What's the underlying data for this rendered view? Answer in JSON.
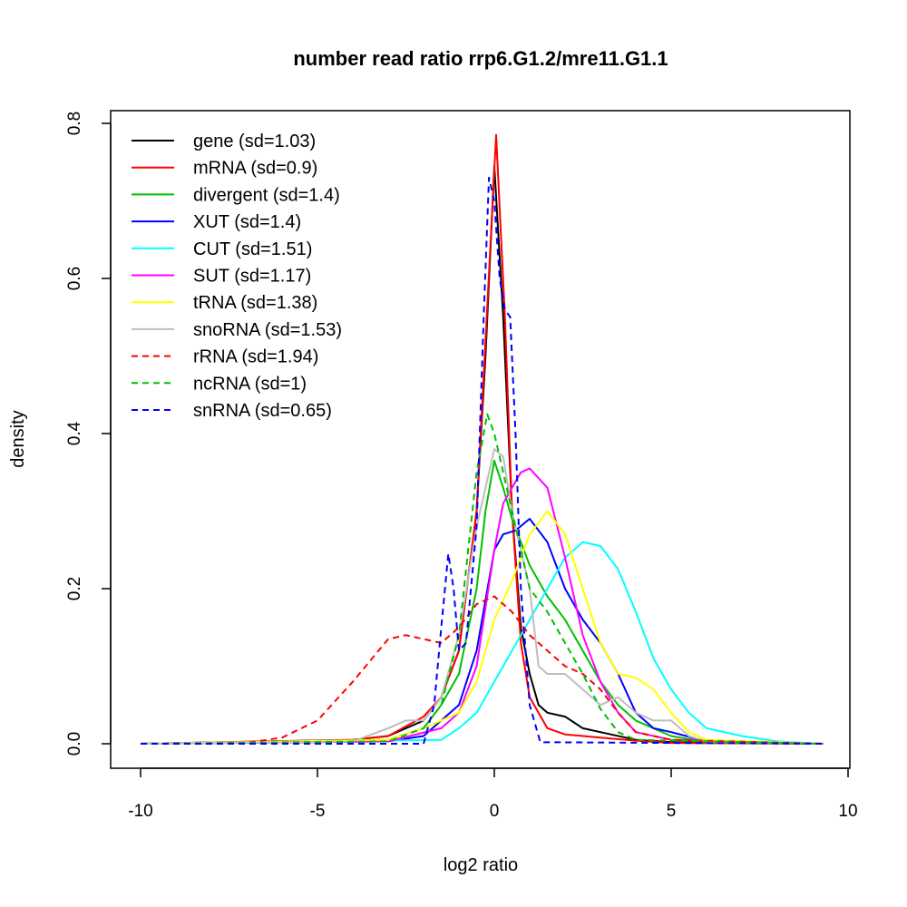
{
  "chart_data": {
    "type": "line",
    "title": "number read ratio rrp6.G1.2/mre11.G1.1",
    "xlabel": "log2 ratio",
    "ylabel": "density",
    "xlim": [
      -10,
      10
    ],
    "ylim": [
      0,
      0.8
    ],
    "xticks": [
      "-10",
      "-5",
      "0",
      "5",
      "10"
    ],
    "xtick_values": [
      -10,
      -5,
      0,
      5,
      10
    ],
    "yticks": [
      "0.0",
      "0.2",
      "0.4",
      "0.6",
      "0.8"
    ],
    "ytick_values": [
      0,
      0.2,
      0.4,
      0.6,
      0.8
    ],
    "legend_position": "top-left",
    "grid": false,
    "series": [
      {
        "name": "gene (sd=1.03)",
        "color": "#000000",
        "dashed": false,
        "points": [
          [
            -10,
            0
          ],
          [
            -4,
            0.005
          ],
          [
            -3,
            0.01
          ],
          [
            -2,
            0.03
          ],
          [
            -1.5,
            0.06
          ],
          [
            -1,
            0.12
          ],
          [
            -0.5,
            0.3
          ],
          [
            -0.25,
            0.5
          ],
          [
            0,
            0.745
          ],
          [
            0.25,
            0.55
          ],
          [
            0.5,
            0.3
          ],
          [
            0.75,
            0.15
          ],
          [
            1,
            0.09
          ],
          [
            1.25,
            0.05
          ],
          [
            1.5,
            0.04
          ],
          [
            2,
            0.035
          ],
          [
            2.5,
            0.02
          ],
          [
            3,
            0.015
          ],
          [
            4,
            0.005
          ],
          [
            5,
            0.002
          ],
          [
            9.3,
            0
          ]
        ]
      },
      {
        "name": "mRNA (sd=0.9)",
        "color": "#ff0000",
        "dashed": false,
        "points": [
          [
            -10,
            0
          ],
          [
            -4,
            0.005
          ],
          [
            -3,
            0.01
          ],
          [
            -2,
            0.035
          ],
          [
            -1.5,
            0.06
          ],
          [
            -1,
            0.12
          ],
          [
            -0.5,
            0.3
          ],
          [
            -0.25,
            0.52
          ],
          [
            0.05,
            0.785
          ],
          [
            0.3,
            0.55
          ],
          [
            0.5,
            0.3
          ],
          [
            0.75,
            0.13
          ],
          [
            1,
            0.06
          ],
          [
            1.5,
            0.02
          ],
          [
            2,
            0.012
          ],
          [
            3,
            0.008
          ],
          [
            4,
            0.004
          ],
          [
            5,
            0.001
          ],
          [
            9.3,
            0
          ]
        ]
      },
      {
        "name": "divergent (sd=1.4)",
        "color": "#00c000",
        "dashed": false,
        "points": [
          [
            -10,
            0
          ],
          [
            -3,
            0.005
          ],
          [
            -2,
            0.02
          ],
          [
            -1.5,
            0.05
          ],
          [
            -1,
            0.09
          ],
          [
            -0.5,
            0.2
          ],
          [
            -0.25,
            0.3
          ],
          [
            0,
            0.365
          ],
          [
            0.25,
            0.33
          ],
          [
            0.5,
            0.29
          ],
          [
            1,
            0.23
          ],
          [
            1.5,
            0.19
          ],
          [
            2,
            0.16
          ],
          [
            2.5,
            0.12
          ],
          [
            3,
            0.08
          ],
          [
            3.5,
            0.05
          ],
          [
            4,
            0.03
          ],
          [
            5,
            0.01
          ],
          [
            6,
            0.002
          ],
          [
            9.3,
            0
          ]
        ]
      },
      {
        "name": "XUT (sd=1.4)",
        "color": "#0000ff",
        "dashed": false,
        "points": [
          [
            -10,
            0
          ],
          [
            -3,
            0.003
          ],
          [
            -2,
            0.01
          ],
          [
            -1,
            0.05
          ],
          [
            -0.5,
            0.12
          ],
          [
            0,
            0.25
          ],
          [
            0.25,
            0.27
          ],
          [
            0.6,
            0.275
          ],
          [
            1,
            0.29
          ],
          [
            1.5,
            0.26
          ],
          [
            2,
            0.2
          ],
          [
            2.5,
            0.16
          ],
          [
            3,
            0.13
          ],
          [
            3.5,
            0.09
          ],
          [
            4,
            0.04
          ],
          [
            4.5,
            0.02
          ],
          [
            5,
            0.015
          ],
          [
            6,
            0.003
          ],
          [
            9.3,
            0
          ]
        ]
      },
      {
        "name": "CUT (sd=1.51)",
        "color": "#00ffff",
        "dashed": false,
        "points": [
          [
            -10,
            0
          ],
          [
            -1.5,
            0.005
          ],
          [
            -1,
            0.02
          ],
          [
            -0.5,
            0.04
          ],
          [
            0,
            0.08
          ],
          [
            0.5,
            0.12
          ],
          [
            1,
            0.16
          ],
          [
            1.5,
            0.2
          ],
          [
            2,
            0.24
          ],
          [
            2.5,
            0.26
          ],
          [
            3,
            0.255
          ],
          [
            3.5,
            0.225
          ],
          [
            4,
            0.17
          ],
          [
            4.5,
            0.11
          ],
          [
            5,
            0.07
          ],
          [
            5.5,
            0.04
          ],
          [
            6,
            0.02
          ],
          [
            7,
            0.01
          ],
          [
            8,
            0.003
          ],
          [
            9.3,
            0
          ]
        ]
      },
      {
        "name": "SUT (sd=1.17)",
        "color": "#ff00ff",
        "dashed": false,
        "points": [
          [
            -10,
            0
          ],
          [
            -3,
            0.003
          ],
          [
            -1.5,
            0.02
          ],
          [
            -1,
            0.04
          ],
          [
            -0.5,
            0.1
          ],
          [
            0,
            0.25
          ],
          [
            0.25,
            0.31
          ],
          [
            0.5,
            0.33
          ],
          [
            0.75,
            0.35
          ],
          [
            1,
            0.355
          ],
          [
            1.5,
            0.33
          ],
          [
            2,
            0.24
          ],
          [
            2.5,
            0.14
          ],
          [
            3,
            0.08
          ],
          [
            3.5,
            0.04
          ],
          [
            4,
            0.015
          ],
          [
            5,
            0.005
          ],
          [
            9.3,
            0
          ]
        ]
      },
      {
        "name": "tRNA (sd=1.38)",
        "color": "#ffff00",
        "dashed": false,
        "points": [
          [
            -10,
            0
          ],
          [
            -3,
            0.005
          ],
          [
            -2,
            0.02
          ],
          [
            -1,
            0.04
          ],
          [
            -0.5,
            0.08
          ],
          [
            0,
            0.16
          ],
          [
            0.5,
            0.21
          ],
          [
            1,
            0.27
          ],
          [
            1.5,
            0.3
          ],
          [
            2,
            0.27
          ],
          [
            2.5,
            0.2
          ],
          [
            3,
            0.13
          ],
          [
            3.5,
            0.09
          ],
          [
            4,
            0.085
          ],
          [
            4.5,
            0.07
          ],
          [
            5,
            0.04
          ],
          [
            5.5,
            0.015
          ],
          [
            6,
            0.005
          ],
          [
            9.3,
            0
          ]
        ]
      },
      {
        "name": "snoRNA (sd=1.53)",
        "color": "#bebebe",
        "dashed": false,
        "points": [
          [
            -10,
            0
          ],
          [
            -4,
            0.003
          ],
          [
            -3,
            0.02
          ],
          [
            -2.5,
            0.03
          ],
          [
            -2,
            0.03
          ],
          [
            -1.5,
            0.06
          ],
          [
            -1,
            0.14
          ],
          [
            -0.5,
            0.28
          ],
          [
            0,
            0.38
          ],
          [
            0.25,
            0.37
          ],
          [
            0.5,
            0.3
          ],
          [
            1,
            0.2
          ],
          [
            1.25,
            0.1
          ],
          [
            1.5,
            0.09
          ],
          [
            2,
            0.09
          ],
          [
            2.5,
            0.07
          ],
          [
            3,
            0.05
          ],
          [
            3.5,
            0.06
          ],
          [
            4,
            0.04
          ],
          [
            4.5,
            0.03
          ],
          [
            5,
            0.03
          ],
          [
            5.5,
            0.01
          ],
          [
            6,
            0.003
          ],
          [
            9.3,
            0
          ]
        ]
      },
      {
        "name": "rRNA (sd=1.94)",
        "color": "#ff0000",
        "dashed": true,
        "points": [
          [
            -10,
            0
          ],
          [
            -7,
            0.001
          ],
          [
            -6,
            0.008
          ],
          [
            -5,
            0.03
          ],
          [
            -4,
            0.08
          ],
          [
            -3,
            0.135
          ],
          [
            -2.5,
            0.14
          ],
          [
            -2,
            0.135
          ],
          [
            -1.5,
            0.13
          ],
          [
            -1,
            0.15
          ],
          [
            -0.5,
            0.18
          ],
          [
            0,
            0.19
          ],
          [
            0.5,
            0.17
          ],
          [
            1,
            0.14
          ],
          [
            1.5,
            0.12
          ],
          [
            2,
            0.1
          ],
          [
            2.5,
            0.09
          ],
          [
            3,
            0.07
          ],
          [
            3.5,
            0.04
          ],
          [
            4,
            0.015
          ],
          [
            5,
            0.005
          ],
          [
            9.3,
            0
          ]
        ]
      },
      {
        "name": "ncRNA (sd=1)",
        "color": "#00c000",
        "dashed": true,
        "points": [
          [
            -10,
            0
          ],
          [
            -3,
            0.003
          ],
          [
            -2,
            0.02
          ],
          [
            -1.5,
            0.05
          ],
          [
            -1,
            0.14
          ],
          [
            -0.5,
            0.35
          ],
          [
            -0.2,
            0.425
          ],
          [
            0,
            0.4
          ],
          [
            0.5,
            0.3
          ],
          [
            1,
            0.2
          ],
          [
            1.5,
            0.17
          ],
          [
            2,
            0.13
          ],
          [
            2.5,
            0.09
          ],
          [
            3,
            0.045
          ],
          [
            3.5,
            0.015
          ],
          [
            4,
            0.005
          ],
          [
            9.3,
            0
          ]
        ]
      },
      {
        "name": "snRNA (sd=0.65)",
        "color": "#0000ff",
        "dashed": true,
        "points": [
          [
            -10,
            0
          ],
          [
            -2,
            0
          ],
          [
            -1.7,
            0.05
          ],
          [
            -1.5,
            0.15
          ],
          [
            -1.3,
            0.245
          ],
          [
            -1.15,
            0.2
          ],
          [
            -1,
            0.12
          ],
          [
            -0.8,
            0.13
          ],
          [
            -0.5,
            0.28
          ],
          [
            -0.3,
            0.55
          ],
          [
            -0.15,
            0.73
          ],
          [
            0,
            0.7
          ],
          [
            0.15,
            0.6
          ],
          [
            0.3,
            0.56
          ],
          [
            0.45,
            0.55
          ],
          [
            0.6,
            0.4
          ],
          [
            0.75,
            0.2
          ],
          [
            1,
            0.05
          ],
          [
            1.3,
            0.002
          ],
          [
            9.3,
            0
          ]
        ]
      }
    ]
  }
}
